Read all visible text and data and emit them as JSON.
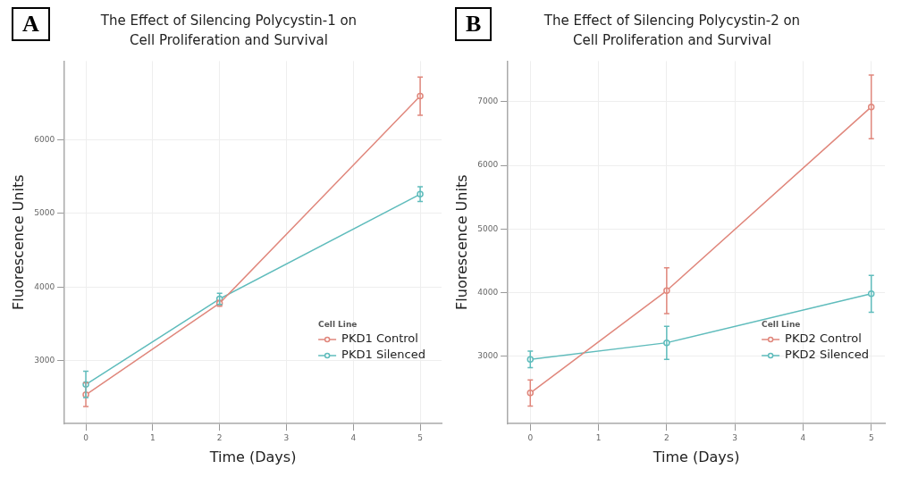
{
  "chart_data": [
    {
      "type": "line",
      "title": "The Effect of Silencing Polycystin-1 on Cell Proliferation and Survival",
      "xlabel": "Time (Days)",
      "ylabel": "Fluorescence Units",
      "legend_title": "Cell Line",
      "annotations": [
        "A"
      ],
      "x": [
        0,
        2,
        5
      ],
      "series": [
        {
          "name": "PKD1 Control",
          "color": "#e0877c",
          "values": [
            2540,
            3780,
            6590
          ],
          "errors": [
            160,
            40,
            260
          ]
        },
        {
          "name": "PKD1 Silenced",
          "color": "#5fbcbc",
          "values": [
            2680,
            3840,
            5260
          ],
          "errors": [
            180,
            75,
            100
          ]
        }
      ],
      "xlim": [
        -0.32,
        5.32
      ],
      "xticks": [
        0,
        1,
        2,
        3,
        4,
        5
      ],
      "ylim": [
        2150,
        7065
      ],
      "yticks": [
        3000,
        4000,
        5000,
        6000
      ],
      "grid": true,
      "legend": "bottom right",
      "marker": "circle",
      "line_style": "solid"
    },
    {
      "type": "line",
      "title": "The Effect of Silencing Polycystin-2 on Cell Proliferation and Survival",
      "xlabel": "Time (Days)",
      "ylabel": "Fluorescence Units",
      "legend_title": "Cell Line",
      "annotations": [
        "B"
      ],
      "x": [
        0,
        2,
        5
      ],
      "series": [
        {
          "name": "PKD2 Control",
          "color": "#e0877c",
          "values": [
            2420,
            4030,
            6920
          ],
          "errors": [
            205,
            360,
            500
          ]
        },
        {
          "name": "PKD2 Silenced",
          "color": "#5fbcbc",
          "values": [
            2950,
            3210,
            3980
          ],
          "errors": [
            130,
            260,
            290
          ]
        }
      ],
      "xlim": [
        -0.33,
        5.2
      ],
      "xticks": [
        0,
        1,
        2,
        3,
        4,
        5
      ],
      "ylim": [
        1940,
        7640
      ],
      "yticks": [
        3000,
        4000,
        5000,
        6000,
        7000
      ],
      "grid": true,
      "legend": "bottom right",
      "marker": "circle",
      "line_style": "solid"
    }
  ]
}
